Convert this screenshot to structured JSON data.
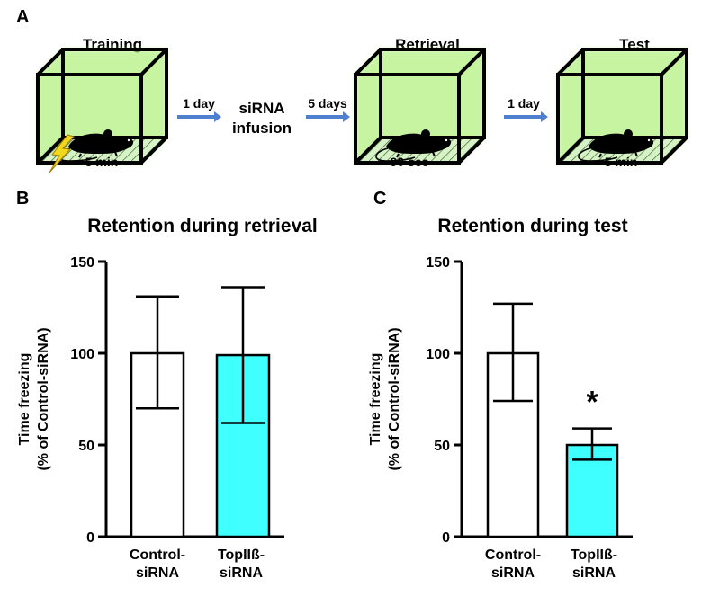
{
  "panel_a": {
    "letter": "A",
    "stages": [
      {
        "title": "Training",
        "duration": "5 min"
      },
      {
        "title": "Retrieval",
        "duration": "90 sec"
      },
      {
        "title": "Test",
        "duration": "5 min"
      }
    ],
    "arrows": [
      "1 day",
      "5 days",
      "1 day"
    ],
    "infusion_label": [
      "siRNA",
      "infusion"
    ]
  },
  "panel_b": {
    "letter": "B"
  },
  "panel_c": {
    "letter": "C"
  },
  "chart_data": [
    {
      "type": "bar",
      "title": "Retention during retrieval",
      "ylabel": [
        "Time freezing",
        "(% of Control-siRNA)"
      ],
      "ylim": [
        0,
        150
      ],
      "yticks": [
        0,
        50,
        100,
        150
      ],
      "categories": [
        [
          "Control-",
          "siRNA"
        ],
        [
          "TopIIß-",
          "siRNA"
        ]
      ],
      "values": [
        100,
        99
      ],
      "error": [
        [
          70,
          131
        ],
        [
          62,
          136
        ]
      ],
      "colors": [
        "#ffffff",
        "#40ffff"
      ],
      "annotations": []
    },
    {
      "type": "bar",
      "title": "Retention during test",
      "ylabel": [
        "Time freezing",
        "(% of Control-siRNA)"
      ],
      "ylim": [
        0,
        150
      ],
      "yticks": [
        0,
        50,
        100,
        150
      ],
      "categories": [
        [
          "Control-",
          "siRNA"
        ],
        [
          "TopIIß-",
          "siRNA"
        ]
      ],
      "values": [
        100,
        50
      ],
      "error": [
        [
          74,
          127
        ],
        [
          42,
          59
        ]
      ],
      "colors": [
        "#ffffff",
        "#40ffff"
      ],
      "annotations": [
        {
          "category_index": 1,
          "text": "*"
        }
      ]
    }
  ]
}
